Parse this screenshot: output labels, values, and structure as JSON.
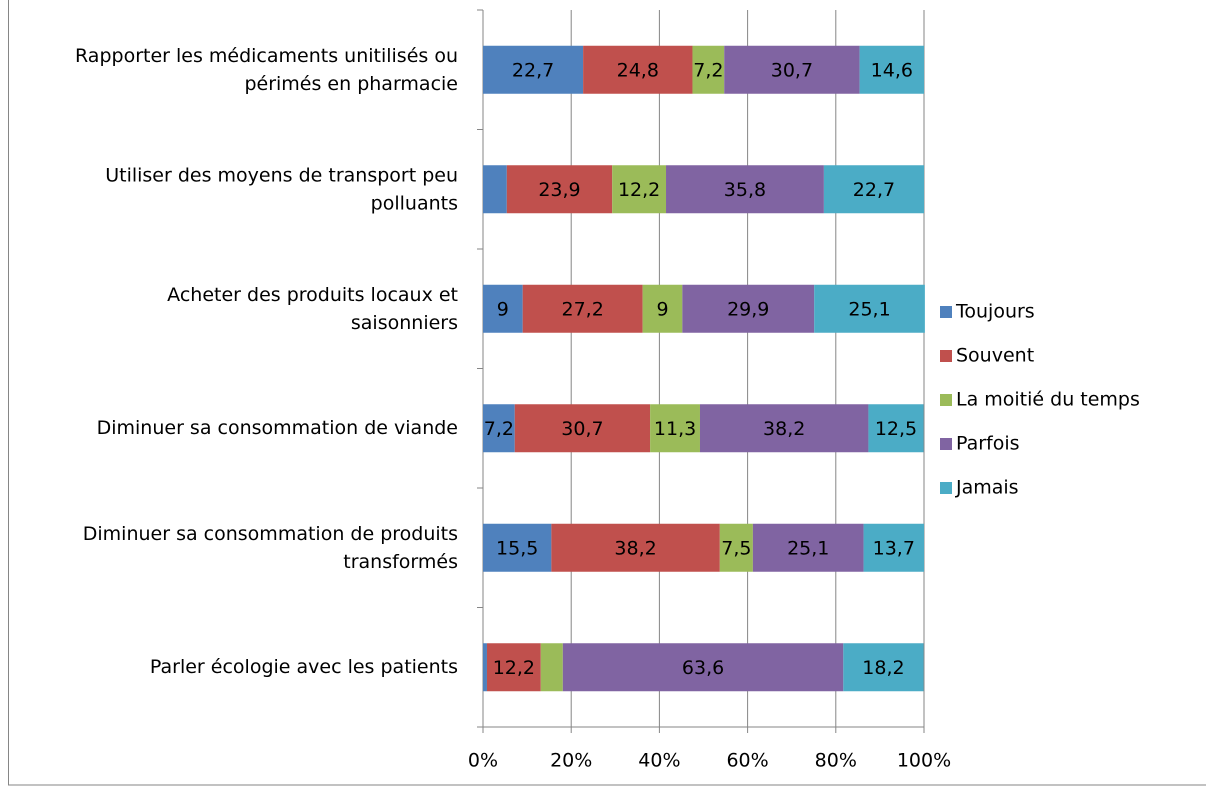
{
  "chart_data": {
    "type": "bar",
    "orientation": "horizontal",
    "stacked": true,
    "categories": [
      "Rapporter les médicaments unitilisés ou\npérimés en pharmacie",
      "Utiliser des moyens de transport peu\npolluants",
      "Acheter des produits locaux et\nsaisonniers",
      "Diminuer sa consommation de viande",
      "Diminuer sa consommation de produits\ntransformés",
      "Parler écologie avec les patients"
    ],
    "series": [
      {
        "name": "Toujours",
        "color": "#4f81bd",
        "values": [
          22.7,
          5.4,
          9,
          7.2,
          15.5,
          0.9
        ],
        "value_labels": [
          "22,7",
          null,
          "9",
          "7,2",
          "15,5",
          null
        ]
      },
      {
        "name": "Souvent",
        "color": "#c0504d",
        "values": [
          24.8,
          23.9,
          27.2,
          30.7,
          38.2,
          12.2
        ],
        "value_labels": [
          "24,8",
          "23,9",
          "27,2",
          "30,7",
          "38,2",
          "12,2"
        ]
      },
      {
        "name": "La moitié du temps",
        "color": "#9bbb59",
        "values": [
          7.2,
          12.2,
          9,
          11.3,
          7.5,
          5.0
        ],
        "value_labels": [
          "7,2",
          "12,2",
          "9",
          "11,3",
          "7,5",
          null
        ]
      },
      {
        "name": "Parfois",
        "color": "#8064a2",
        "values": [
          30.7,
          35.8,
          29.9,
          38.2,
          25.1,
          63.6
        ],
        "value_labels": [
          "30,7",
          "35,8",
          "29,9",
          "38,2",
          "25,1",
          "63,6"
        ]
      },
      {
        "name": "Jamais",
        "color": "#4bacc6",
        "values": [
          14.6,
          22.7,
          25.1,
          12.5,
          13.7,
          18.2
        ],
        "value_labels": [
          "14,6",
          "22,7",
          "25,1",
          "12,5",
          "13,7",
          "18,2"
        ]
      }
    ],
    "xlim": [
      0,
      100
    ],
    "xticks": [
      {
        "value": 0,
        "label": "0%"
      },
      {
        "value": 20,
        "label": "20%"
      },
      {
        "value": 40,
        "label": "40%"
      },
      {
        "value": 60,
        "label": "60%"
      },
      {
        "value": 80,
        "label": "80%"
      },
      {
        "value": 100,
        "label": "100%"
      }
    ],
    "grid": true,
    "legend": "right"
  }
}
